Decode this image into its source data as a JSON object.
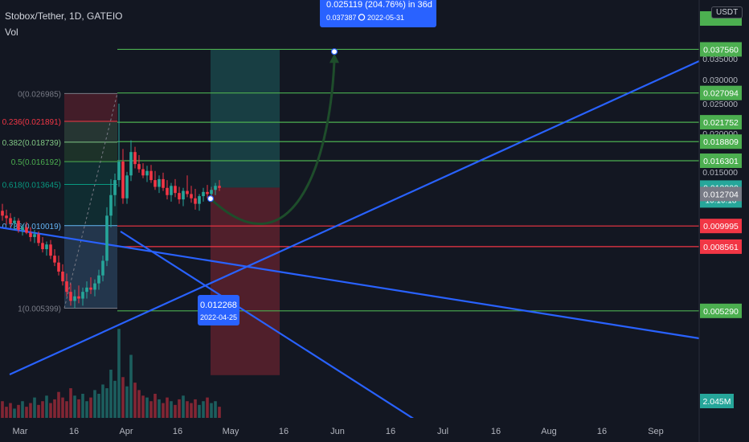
{
  "header": {
    "title": "Stobox/Tether, 1D, GATEIO",
    "volume_label": "Vol",
    "currency_button": "USDT"
  },
  "chart_data": {
    "type": "candlestick",
    "symbol": "Stobox/Tether",
    "interval": "1D",
    "exchange": "GATEIO",
    "quote_currency": "USDT",
    "x_axis_ticks": [
      "Mar",
      "16",
      "Apr",
      "16",
      "May",
      "16",
      "Jun",
      "16",
      "Jul",
      "16",
      "Aug",
      "16",
      "Sep"
    ],
    "y_axis_ticks": [
      0.035,
      0.03,
      0.025,
      0.02,
      0.015
    ],
    "y_axis_tick_labels": [
      "0.035000",
      "0.030000",
      "0.025000",
      "0.020000",
      "0.015000"
    ],
    "y_scale": "logarithmic",
    "ylim": [
      0.0042,
      0.04
    ],
    "grid": false,
    "volume_label_value": "2.045M",
    "price_labels": [
      {
        "value": "0.037560",
        "color": "#4caf50"
      },
      {
        "value": "0.027094",
        "color": "#4caf50"
      },
      {
        "value": "0.021752",
        "color": "#4caf50"
      },
      {
        "value": "0.018809",
        "color": "#4caf50"
      },
      {
        "value": "0.016301",
        "color": "#4caf50"
      },
      {
        "value": "0.013300",
        "color": "#26a69a",
        "countdown": "10:10:18"
      },
      {
        "value": "0.012704",
        "color": "#787b86"
      },
      {
        "value": "0.009995",
        "color": "#f23645"
      },
      {
        "value": "0.008561",
        "color": "#f23645"
      },
      {
        "value": "0.005290",
        "color": "#4caf50"
      }
    ],
    "horizontal_lines": [
      {
        "value": 0.03756,
        "color": "#4caf50"
      },
      {
        "value": 0.027094,
        "color": "#4caf50"
      },
      {
        "value": 0.021752,
        "color": "#4caf50"
      },
      {
        "value": 0.018809,
        "color": "#4caf50"
      },
      {
        "value": 0.016301,
        "color": "#4caf50"
      },
      {
        "value": 0.009995,
        "color": "#f23645"
      },
      {
        "value": 0.008561,
        "color": "#f23645"
      },
      {
        "value": 0.00529,
        "color": "#4caf50"
      }
    ],
    "fibonacci_levels": [
      {
        "label": "0(0.026985)",
        "ratio": 0,
        "value": 0.026985,
        "color": "#787b86"
      },
      {
        "label": "0.236(0.021891)",
        "ratio": 0.236,
        "value": 0.021891,
        "color": "#f23645"
      },
      {
        "label": "0.382(0.018739)",
        "ratio": 0.382,
        "value": 0.018739,
        "color": "#81c784"
      },
      {
        "label": "0.5(0.016192)",
        "ratio": 0.5,
        "value": 0.016192,
        "color": "#4caf50"
      },
      {
        "label": "0.618(0.013645)",
        "ratio": 0.618,
        "value": 0.013645,
        "color": "#089981"
      },
      {
        "label": "0.786(0.010019)",
        "ratio": 0.786,
        "value": 0.010019,
        "color": "#64b5f6"
      },
      {
        "label": "1(0.005399)",
        "ratio": 1,
        "value": 0.005399,
        "color": "#787b86"
      }
    ],
    "annotations": [
      {
        "id": "entry",
        "text": "0.012268",
        "date": "2022-04-25",
        "value": 0.012268
      },
      {
        "id": "target",
        "text": "0.025119 (204.76%) in 36d",
        "subtext": "0.037387",
        "date": "2022-05-31",
        "value": 0.037387
      }
    ],
    "position_tool": {
      "type": "long",
      "entry": 0.01333,
      "target": 0.03756,
      "stop": 0.00529
    },
    "candles": [
      {
        "o": 0.0112,
        "h": 0.0118,
        "l": 0.0104,
        "c": 0.0108
      },
      {
        "o": 0.0108,
        "h": 0.0113,
        "l": 0.0101,
        "c": 0.0106
      },
      {
        "o": 0.0106,
        "h": 0.011,
        "l": 0.0099,
        "c": 0.0102
      },
      {
        "o": 0.0102,
        "h": 0.0107,
        "l": 0.0097,
        "c": 0.0104
      },
      {
        "o": 0.0104,
        "h": 0.0106,
        "l": 0.0095,
        "c": 0.0097
      },
      {
        "o": 0.0097,
        "h": 0.0101,
        "l": 0.0093,
        "c": 0.0099
      },
      {
        "o": 0.0099,
        "h": 0.0103,
        "l": 0.0094,
        "c": 0.0095
      },
      {
        "o": 0.0095,
        "h": 0.0099,
        "l": 0.0089,
        "c": 0.0092
      },
      {
        "o": 0.0092,
        "h": 0.0097,
        "l": 0.0088,
        "c": 0.0094
      },
      {
        "o": 0.0094,
        "h": 0.0096,
        "l": 0.0086,
        "c": 0.0088
      },
      {
        "o": 0.0088,
        "h": 0.0092,
        "l": 0.0082,
        "c": 0.0084
      },
      {
        "o": 0.0084,
        "h": 0.0089,
        "l": 0.008,
        "c": 0.0087
      },
      {
        "o": 0.0087,
        "h": 0.009,
        "l": 0.0078,
        "c": 0.008
      },
      {
        "o": 0.008,
        "h": 0.0084,
        "l": 0.0074,
        "c": 0.0076
      },
      {
        "o": 0.0076,
        "h": 0.008,
        "l": 0.0069,
        "c": 0.0071
      },
      {
        "o": 0.0071,
        "h": 0.0075,
        "l": 0.0064,
        "c": 0.0066
      },
      {
        "o": 0.0066,
        "h": 0.007,
        "l": 0.0059,
        "c": 0.0061
      },
      {
        "o": 0.0061,
        "h": 0.0065,
        "l": 0.0055,
        "c": 0.0057
      },
      {
        "o": 0.0057,
        "h": 0.0062,
        "l": 0.0054,
        "c": 0.0059
      },
      {
        "o": 0.0059,
        "h": 0.0064,
        "l": 0.0056,
        "c": 0.0058
      },
      {
        "o": 0.0058,
        "h": 0.0063,
        "l": 0.0055,
        "c": 0.0061
      },
      {
        "o": 0.0061,
        "h": 0.0066,
        "l": 0.0058,
        "c": 0.0063
      },
      {
        "o": 0.0063,
        "h": 0.0068,
        "l": 0.006,
        "c": 0.0062
      },
      {
        "o": 0.0062,
        "h": 0.0067,
        "l": 0.0059,
        "c": 0.0065
      },
      {
        "o": 0.0065,
        "h": 0.0072,
        "l": 0.0062,
        "c": 0.0069
      },
      {
        "o": 0.0069,
        "h": 0.008,
        "l": 0.0066,
        "c": 0.0077
      },
      {
        "o": 0.0077,
        "h": 0.0115,
        "l": 0.0074,
        "c": 0.0108
      },
      {
        "o": 0.0108,
        "h": 0.0142,
        "l": 0.0099,
        "c": 0.0126
      },
      {
        "o": 0.0126,
        "h": 0.0148,
        "l": 0.0116,
        "c": 0.0141
      },
      {
        "o": 0.0141,
        "h": 0.025,
        "l": 0.0134,
        "c": 0.0162
      },
      {
        "o": 0.0162,
        "h": 0.0178,
        "l": 0.0118,
        "c": 0.0123
      },
      {
        "o": 0.0123,
        "h": 0.015,
        "l": 0.0118,
        "c": 0.0146
      },
      {
        "o": 0.0146,
        "h": 0.019,
        "l": 0.014,
        "c": 0.0174
      },
      {
        "o": 0.0174,
        "h": 0.0181,
        "l": 0.0154,
        "c": 0.0159
      },
      {
        "o": 0.0159,
        "h": 0.017,
        "l": 0.0149,
        "c": 0.0153
      },
      {
        "o": 0.0153,
        "h": 0.016,
        "l": 0.0143,
        "c": 0.0146
      },
      {
        "o": 0.0146,
        "h": 0.0157,
        "l": 0.0139,
        "c": 0.0151
      },
      {
        "o": 0.0151,
        "h": 0.0158,
        "l": 0.0138,
        "c": 0.0141
      },
      {
        "o": 0.0141,
        "h": 0.0151,
        "l": 0.0131,
        "c": 0.0134
      },
      {
        "o": 0.0134,
        "h": 0.0146,
        "l": 0.0128,
        "c": 0.0142
      },
      {
        "o": 0.0142,
        "h": 0.0149,
        "l": 0.013,
        "c": 0.0133
      },
      {
        "o": 0.0133,
        "h": 0.0141,
        "l": 0.0122,
        "c": 0.0126
      },
      {
        "o": 0.0126,
        "h": 0.0138,
        "l": 0.012,
        "c": 0.0135
      },
      {
        "o": 0.0135,
        "h": 0.0142,
        "l": 0.0124,
        "c": 0.0128
      },
      {
        "o": 0.0128,
        "h": 0.0134,
        "l": 0.0118,
        "c": 0.0122
      },
      {
        "o": 0.0122,
        "h": 0.0133,
        "l": 0.0116,
        "c": 0.013
      },
      {
        "o": 0.013,
        "h": 0.0146,
        "l": 0.0124,
        "c": 0.0127
      },
      {
        "o": 0.0127,
        "h": 0.0135,
        "l": 0.0119,
        "c": 0.0123
      },
      {
        "o": 0.0123,
        "h": 0.0132,
        "l": 0.0113,
        "c": 0.0118
      },
      {
        "o": 0.0118,
        "h": 0.0127,
        "l": 0.0112,
        "c": 0.0125
      },
      {
        "o": 0.0125,
        "h": 0.0133,
        "l": 0.012,
        "c": 0.0129
      },
      {
        "o": 0.0129,
        "h": 0.0136,
        "l": 0.0123,
        "c": 0.0127
      },
      {
        "o": 0.0127,
        "h": 0.0134,
        "l": 0.0121,
        "c": 0.0131
      },
      {
        "o": 0.0131,
        "h": 0.0138,
        "l": 0.0126,
        "c": 0.0135
      },
      {
        "o": 0.0135,
        "h": 0.0141,
        "l": 0.013,
        "c": 0.0133
      }
    ],
    "volumes": [
      0.9,
      0.6,
      0.8,
      0.5,
      0.7,
      0.9,
      0.6,
      0.8,
      1.1,
      0.7,
      0.9,
      1.2,
      0.8,
      1.0,
      1.4,
      1.1,
      0.9,
      1.6,
      1.2,
      1.0,
      1.3,
      0.9,
      1.1,
      1.5,
      1.3,
      1.8,
      1.6,
      2.6,
      2.0,
      4.8,
      2.2,
      1.7,
      3.4,
      1.9,
      1.5,
      1.2,
      1.1,
      0.9,
      1.3,
      1.0,
      0.8,
      1.1,
      0.9,
      0.7,
      1.0,
      1.2,
      0.9,
      0.8,
      1.0,
      0.7,
      0.9,
      1.1,
      0.8,
      0.9,
      0.6
    ],
    "volume_max": 5.2
  }
}
